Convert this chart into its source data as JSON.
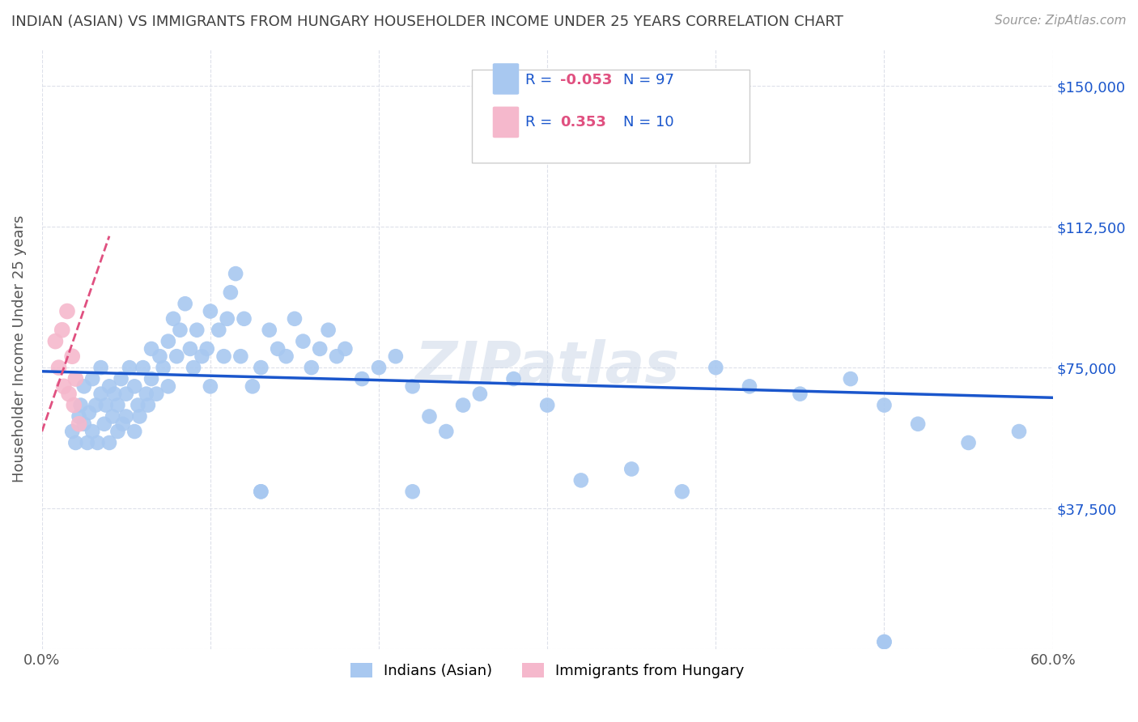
{
  "title": "INDIAN (ASIAN) VS IMMIGRANTS FROM HUNGARY HOUSEHOLDER INCOME UNDER 25 YEARS CORRELATION CHART",
  "source": "Source: ZipAtlas.com",
  "ylabel": "Householder Income Under 25 years",
  "xlim": [
    0.0,
    0.6
  ],
  "ylim": [
    0,
    160000
  ],
  "yticks": [
    0,
    37500,
    75000,
    112500,
    150000
  ],
  "ytick_labels": [
    "",
    "$37,500",
    "$75,000",
    "$112,500",
    "$150,000"
  ],
  "xticks": [
    0.0,
    0.1,
    0.2,
    0.3,
    0.4,
    0.5,
    0.6
  ],
  "xtick_labels": [
    "0.0%",
    "",
    "",
    "",
    "",
    "",
    "60.0%"
  ],
  "color_blue": "#a8c8f0",
  "color_pink": "#f5b8cc",
  "line_blue": "#1a56cc",
  "line_pink": "#e05080",
  "watermark": "ZIPatlas",
  "background_color": "#ffffff",
  "grid_color": "#dde0ea",
  "title_color": "#404040",
  "axis_label_color": "#555555",
  "tick_label_color_y": "#1a56cc",
  "tick_label_color_x": "#555555",
  "blue_x": [
    0.018,
    0.02,
    0.022,
    0.023,
    0.025,
    0.025,
    0.027,
    0.028,
    0.03,
    0.03,
    0.032,
    0.033,
    0.035,
    0.035,
    0.037,
    0.038,
    0.04,
    0.04,
    0.042,
    0.043,
    0.045,
    0.045,
    0.047,
    0.048,
    0.05,
    0.05,
    0.052,
    0.055,
    0.055,
    0.057,
    0.058,
    0.06,
    0.062,
    0.063,
    0.065,
    0.065,
    0.068,
    0.07,
    0.072,
    0.075,
    0.075,
    0.078,
    0.08,
    0.082,
    0.085,
    0.088,
    0.09,
    0.092,
    0.095,
    0.098,
    0.1,
    0.1,
    0.105,
    0.108,
    0.11,
    0.112,
    0.115,
    0.118,
    0.12,
    0.125,
    0.13,
    0.135,
    0.14,
    0.145,
    0.15,
    0.155,
    0.16,
    0.165,
    0.17,
    0.175,
    0.18,
    0.19,
    0.2,
    0.21,
    0.22,
    0.23,
    0.24,
    0.25,
    0.26,
    0.28,
    0.3,
    0.32,
    0.35,
    0.38,
    0.4,
    0.42,
    0.45,
    0.48,
    0.5,
    0.52,
    0.55,
    0.58,
    0.13,
    0.22,
    0.5,
    0.13,
    0.5
  ],
  "blue_y": [
    58000,
    55000,
    62000,
    65000,
    60000,
    70000,
    55000,
    63000,
    58000,
    72000,
    65000,
    55000,
    68000,
    75000,
    60000,
    65000,
    70000,
    55000,
    62000,
    68000,
    58000,
    65000,
    72000,
    60000,
    68000,
    62000,
    75000,
    58000,
    70000,
    65000,
    62000,
    75000,
    68000,
    65000,
    72000,
    80000,
    68000,
    78000,
    75000,
    70000,
    82000,
    88000,
    78000,
    85000,
    92000,
    80000,
    75000,
    85000,
    78000,
    80000,
    90000,
    70000,
    85000,
    78000,
    88000,
    95000,
    100000,
    78000,
    88000,
    70000,
    75000,
    85000,
    80000,
    78000,
    88000,
    82000,
    75000,
    80000,
    85000,
    78000,
    80000,
    72000,
    75000,
    78000,
    70000,
    62000,
    58000,
    65000,
    68000,
    72000,
    65000,
    45000,
    48000,
    42000,
    75000,
    70000,
    68000,
    72000,
    65000,
    60000,
    55000,
    58000,
    42000,
    42000,
    2000,
    42000,
    2000
  ],
  "pink_x": [
    0.008,
    0.01,
    0.012,
    0.013,
    0.015,
    0.016,
    0.018,
    0.019,
    0.02,
    0.022
  ],
  "pink_y": [
    82000,
    75000,
    85000,
    70000,
    90000,
    68000,
    78000,
    65000,
    72000,
    60000
  ]
}
